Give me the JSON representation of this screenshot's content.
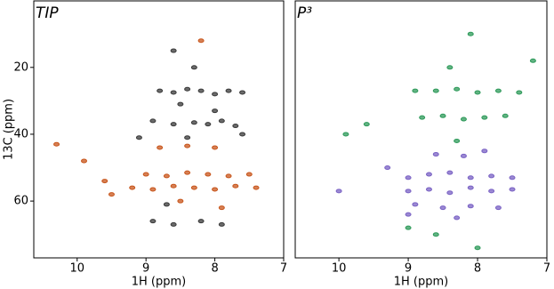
{
  "chart_data": [
    {
      "type": "scatter",
      "title": "TIP",
      "xlabel": "1H (ppm)",
      "ylabel": "13C (ppm)",
      "xlim": [
        10.63,
        7.0
      ],
      "ylim": [
        77,
        0.1
      ],
      "xticks": [
        10,
        9,
        8,
        7
      ],
      "yticks": [
        20,
        40,
        60
      ],
      "series": [
        {
          "color": "#3a3a3a",
          "x": [
            8.8,
            8.6,
            8.4,
            8.2,
            8.0,
            7.8,
            7.6,
            8.9,
            8.6,
            8.3,
            8.1,
            7.9,
            7.7,
            8.5,
            8.0,
            8.9,
            8.6,
            8.2,
            7.9,
            8.3,
            8.6,
            9.1,
            8.4,
            7.6,
            8.7
          ],
          "values": [
            27,
            27.5,
            26.5,
            27,
            28,
            27,
            27.5,
            36,
            37,
            36.5,
            37,
            36,
            37.5,
            31,
            33,
            66,
            67,
            66,
            67,
            20,
            15,
            41,
            41,
            40,
            61
          ]
        },
        {
          "color": "#c8561c",
          "x": [
            9.0,
            8.7,
            8.4,
            8.1,
            7.8,
            7.5,
            9.2,
            8.9,
            8.6,
            8.3,
            8.0,
            7.7,
            7.4,
            8.8,
            8.4,
            8.0,
            10.3,
            9.6,
            9.5,
            8.5,
            7.9,
            8.2,
            9.9
          ],
          "values": [
            52,
            52.5,
            51.5,
            52,
            52.5,
            52,
            56,
            56.5,
            55.5,
            56,
            56.5,
            55.5,
            56,
            44,
            43.5,
            44,
            43,
            54,
            58,
            60,
            62,
            12,
            48
          ]
        }
      ]
    },
    {
      "type": "scatter",
      "title": "P³",
      "xlabel": "1H (ppm)",
      "xlim": [
        10.63,
        7.0
      ],
      "ylim": [
        77,
        0.1
      ],
      "xticks": [
        10,
        9,
        8,
        7
      ],
      "series": [
        {
          "color": "#2e9a5a",
          "x": [
            8.9,
            8.6,
            8.3,
            8.0,
            7.7,
            7.4,
            8.8,
            8.5,
            8.2,
            7.9,
            7.6,
            8.4,
            8.1,
            7.2,
            9.9,
            9.6,
            8.3,
            8.6,
            8.0,
            9.0
          ],
          "values": [
            27,
            27,
            26.5,
            27.5,
            27,
            27.5,
            35,
            34.5,
            35.5,
            35,
            34.5,
            20,
            10,
            18,
            40,
            37,
            42,
            70,
            74,
            68
          ]
        },
        {
          "color": "#7a62c4",
          "x": [
            9.0,
            8.7,
            8.4,
            8.1,
            7.8,
            7.5,
            9.0,
            8.7,
            8.4,
            8.1,
            7.8,
            7.5,
            8.9,
            8.5,
            8.1,
            7.7,
            8.6,
            8.2,
            7.9,
            10.0,
            9.3,
            8.3,
            9.0
          ],
          "values": [
            53,
            52,
            51.5,
            53,
            52.5,
            53,
            57,
            56.5,
            57.5,
            56,
            57,
            56.5,
            61,
            62,
            61.5,
            62,
            46,
            46.5,
            45,
            57,
            50,
            65,
            64
          ]
        }
      ]
    }
  ]
}
